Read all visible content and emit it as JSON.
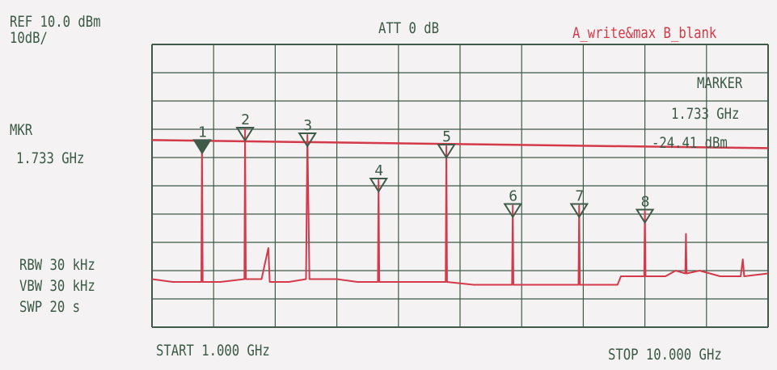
{
  "header": {
    "ref_line1": "REF 10.0 dBm",
    "ref_line2": "10dB/",
    "att": "ATT 0 dB",
    "trace_mode": "A_write&max B_blank"
  },
  "left_panel": {
    "mkr_label": "MKR",
    "mkr_value": "1.733 GHz",
    "rbw": "RBW 30 kHz",
    "vbw": "VBW 30 kHz",
    "swp": "SWP 20 s"
  },
  "marker_readout": {
    "title": "MARKER",
    "freq": "1.733 GHz",
    "level": "-24.41 dBm"
  },
  "footer": {
    "start": "START 1.000 GHz",
    "stop": "STOP 10.000 GHz"
  },
  "colors": {
    "trace": "#d43a4a",
    "grid": "#3f5a48",
    "text": "#3a5a45",
    "background": "#f4f2f2"
  },
  "chart_data": {
    "type": "line",
    "title": "",
    "xlabel": "",
    "ylabel": "",
    "x_unit": "GHz",
    "y_unit": "dBm",
    "xlim": [
      1.0,
      10.0
    ],
    "ylim": [
      -90.0,
      10.0
    ],
    "grid": true,
    "grid_divisions": {
      "x": 10,
      "y": 10
    },
    "display_line_dbm": -24.4,
    "series": [
      {
        "values": [
          [
            1.0,
            -73
          ],
          [
            1.3,
            -74
          ],
          [
            1.6,
            -74
          ],
          [
            1.72,
            -74
          ],
          [
            1.73,
            -24.4
          ],
          [
            1.74,
            -74
          ],
          [
            2.0,
            -74
          ],
          [
            2.35,
            -73
          ],
          [
            2.36,
            -20
          ],
          [
            2.37,
            -73
          ],
          [
            2.6,
            -73
          ],
          [
            2.7,
            -62
          ],
          [
            2.72,
            -74
          ],
          [
            3.0,
            -74
          ],
          [
            3.25,
            -73
          ],
          [
            3.27,
            -22
          ],
          [
            3.3,
            -73
          ],
          [
            3.5,
            -73
          ],
          [
            3.7,
            -73
          ],
          [
            4.0,
            -74
          ],
          [
            4.3,
            -74
          ],
          [
            4.31,
            -38
          ],
          [
            4.32,
            -74
          ],
          [
            4.7,
            -74
          ],
          [
            5.0,
            -74
          ],
          [
            5.29,
            -74
          ],
          [
            5.3,
            -26
          ],
          [
            5.31,
            -74
          ],
          [
            5.7,
            -75
          ],
          [
            6.0,
            -75
          ],
          [
            6.26,
            -75
          ],
          [
            6.27,
            -47
          ],
          [
            6.28,
            -75
          ],
          [
            6.6,
            -75
          ],
          [
            7.0,
            -75
          ],
          [
            7.23,
            -75
          ],
          [
            7.24,
            -47
          ],
          [
            7.25,
            -75
          ],
          [
            7.6,
            -75
          ],
          [
            7.8,
            -75
          ],
          [
            7.85,
            -72
          ],
          [
            8.0,
            -72
          ],
          [
            8.19,
            -72
          ],
          [
            8.2,
            -49
          ],
          [
            8.21,
            -72
          ],
          [
            8.5,
            -72
          ],
          [
            8.65,
            -70
          ],
          [
            8.79,
            -71
          ],
          [
            8.8,
            -57
          ],
          [
            8.81,
            -71
          ],
          [
            9.0,
            -70
          ],
          [
            9.3,
            -72
          ],
          [
            9.6,
            -72
          ],
          [
            9.63,
            -66
          ],
          [
            9.65,
            -72
          ],
          [
            10.0,
            -71
          ]
        ]
      }
    ],
    "markers": [
      {
        "label": "1",
        "x": 1.733,
        "y": -24.41,
        "active": true
      },
      {
        "label": "2",
        "x": 2.36,
        "y": -20,
        "active": false
      },
      {
        "label": "3",
        "x": 3.27,
        "y": -22,
        "active": false
      },
      {
        "label": "4",
        "x": 4.31,
        "y": -38,
        "active": false
      },
      {
        "label": "5",
        "x": 5.3,
        "y": -26,
        "active": false
      },
      {
        "label": "6",
        "x": 6.27,
        "y": -47,
        "active": false
      },
      {
        "label": "7",
        "x": 7.24,
        "y": -47,
        "active": false
      },
      {
        "label": "8",
        "x": 8.2,
        "y": -49,
        "active": false
      }
    ]
  }
}
